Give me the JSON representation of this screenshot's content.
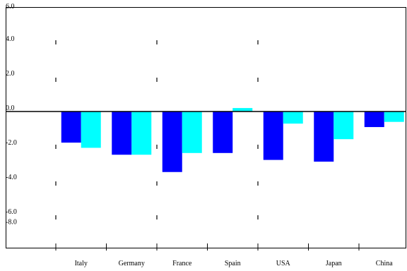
{
  "chart_data": {
    "type": "bar",
    "title": "",
    "xlabel": "",
    "ylabel": "",
    "categories": [
      "Italy",
      "Germany",
      "France",
      "Spain",
      "USA",
      "Japan",
      "China"
    ],
    "series": [
      {
        "color": "#0000ff",
        "values": [
          -1.8,
          -2.5,
          -3.5,
          -2.4,
          -2.8,
          -2.9,
          -0.9
        ]
      },
      {
        "color": "#00ffff",
        "values": [
          -2.1,
          -2.5,
          -2.4,
          0.2,
          -0.7,
          -1.6,
          -0.6
        ]
      }
    ],
    "y_ticks": [
      {
        "value": 6.0,
        "label": "6.0"
      },
      {
        "value": 4.0,
        "label": "4.0"
      },
      {
        "value": 2.0,
        "label": "2.0"
      },
      {
        "value": 0.0,
        "label": "0.0"
      },
      {
        "value": -2.0,
        "label": "-2.0"
      },
      {
        "value": -4.0,
        "label": "-4.0"
      },
      {
        "value": -6.0,
        "label": "-6.0"
      },
      {
        "value": -8.0,
        "label": "-8.0"
      }
    ],
    "ylim": [
      -8.0,
      6.0
    ],
    "grid": false,
    "legend": "none"
  }
}
